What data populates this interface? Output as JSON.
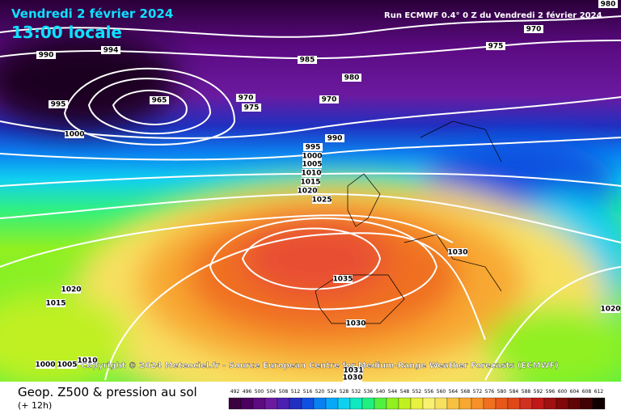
{
  "header": {
    "date": "Vendredi 2 février 2024",
    "time": "13:00 locale",
    "run": "Run ECMWF 0.4° 0 Z du Vendredi 2 février 2024"
  },
  "copyright": "Copyright © 2024 Meteociel.fr - Source European Centre for Medium-Range Weather Forecasts (ECMWF)",
  "footer": {
    "title": "Geop. Z500 & pression au sol",
    "lead": "(+ 12h)"
  },
  "isobar_labels": [
    "990",
    "994",
    "985",
    "980",
    "975",
    "970",
    "965",
    "970",
    "970",
    "975",
    "995",
    "1000",
    "990",
    "995",
    "1000",
    "1005",
    "1010",
    "1015",
    "1020",
    "1025",
    "1035",
    "1030",
    "1030",
    "1020",
    "1015",
    "1020",
    "1000",
    "1005",
    "1010",
    "1031",
    "1030",
    "980"
  ],
  "legend": {
    "values": [
      492,
      496,
      500,
      504,
      508,
      512,
      516,
      520,
      524,
      528,
      532,
      536,
      540,
      544,
      548,
      552,
      556,
      560,
      564,
      568,
      572,
      576,
      580,
      584,
      588,
      592,
      596,
      600,
      604,
      608,
      612
    ],
    "colors": [
      "#3a003f",
      "#4b0060",
      "#5e0a80",
      "#6b1aa0",
      "#4a1fb0",
      "#2030c0",
      "#1050e0",
      "#0a80f0",
      "#08a8f8",
      "#10d0f0",
      "#10e8c0",
      "#20f080",
      "#50f040",
      "#90f020",
      "#c0f020",
      "#e8f040",
      "#f8f070",
      "#f8e060",
      "#f8c040",
      "#f8a830",
      "#f89028",
      "#f07020",
      "#e85818",
      "#e04818",
      "#d03020",
      "#c01818",
      "#a01010",
      "#800808",
      "#600404",
      "#400202",
      "#100000"
    ]
  }
}
